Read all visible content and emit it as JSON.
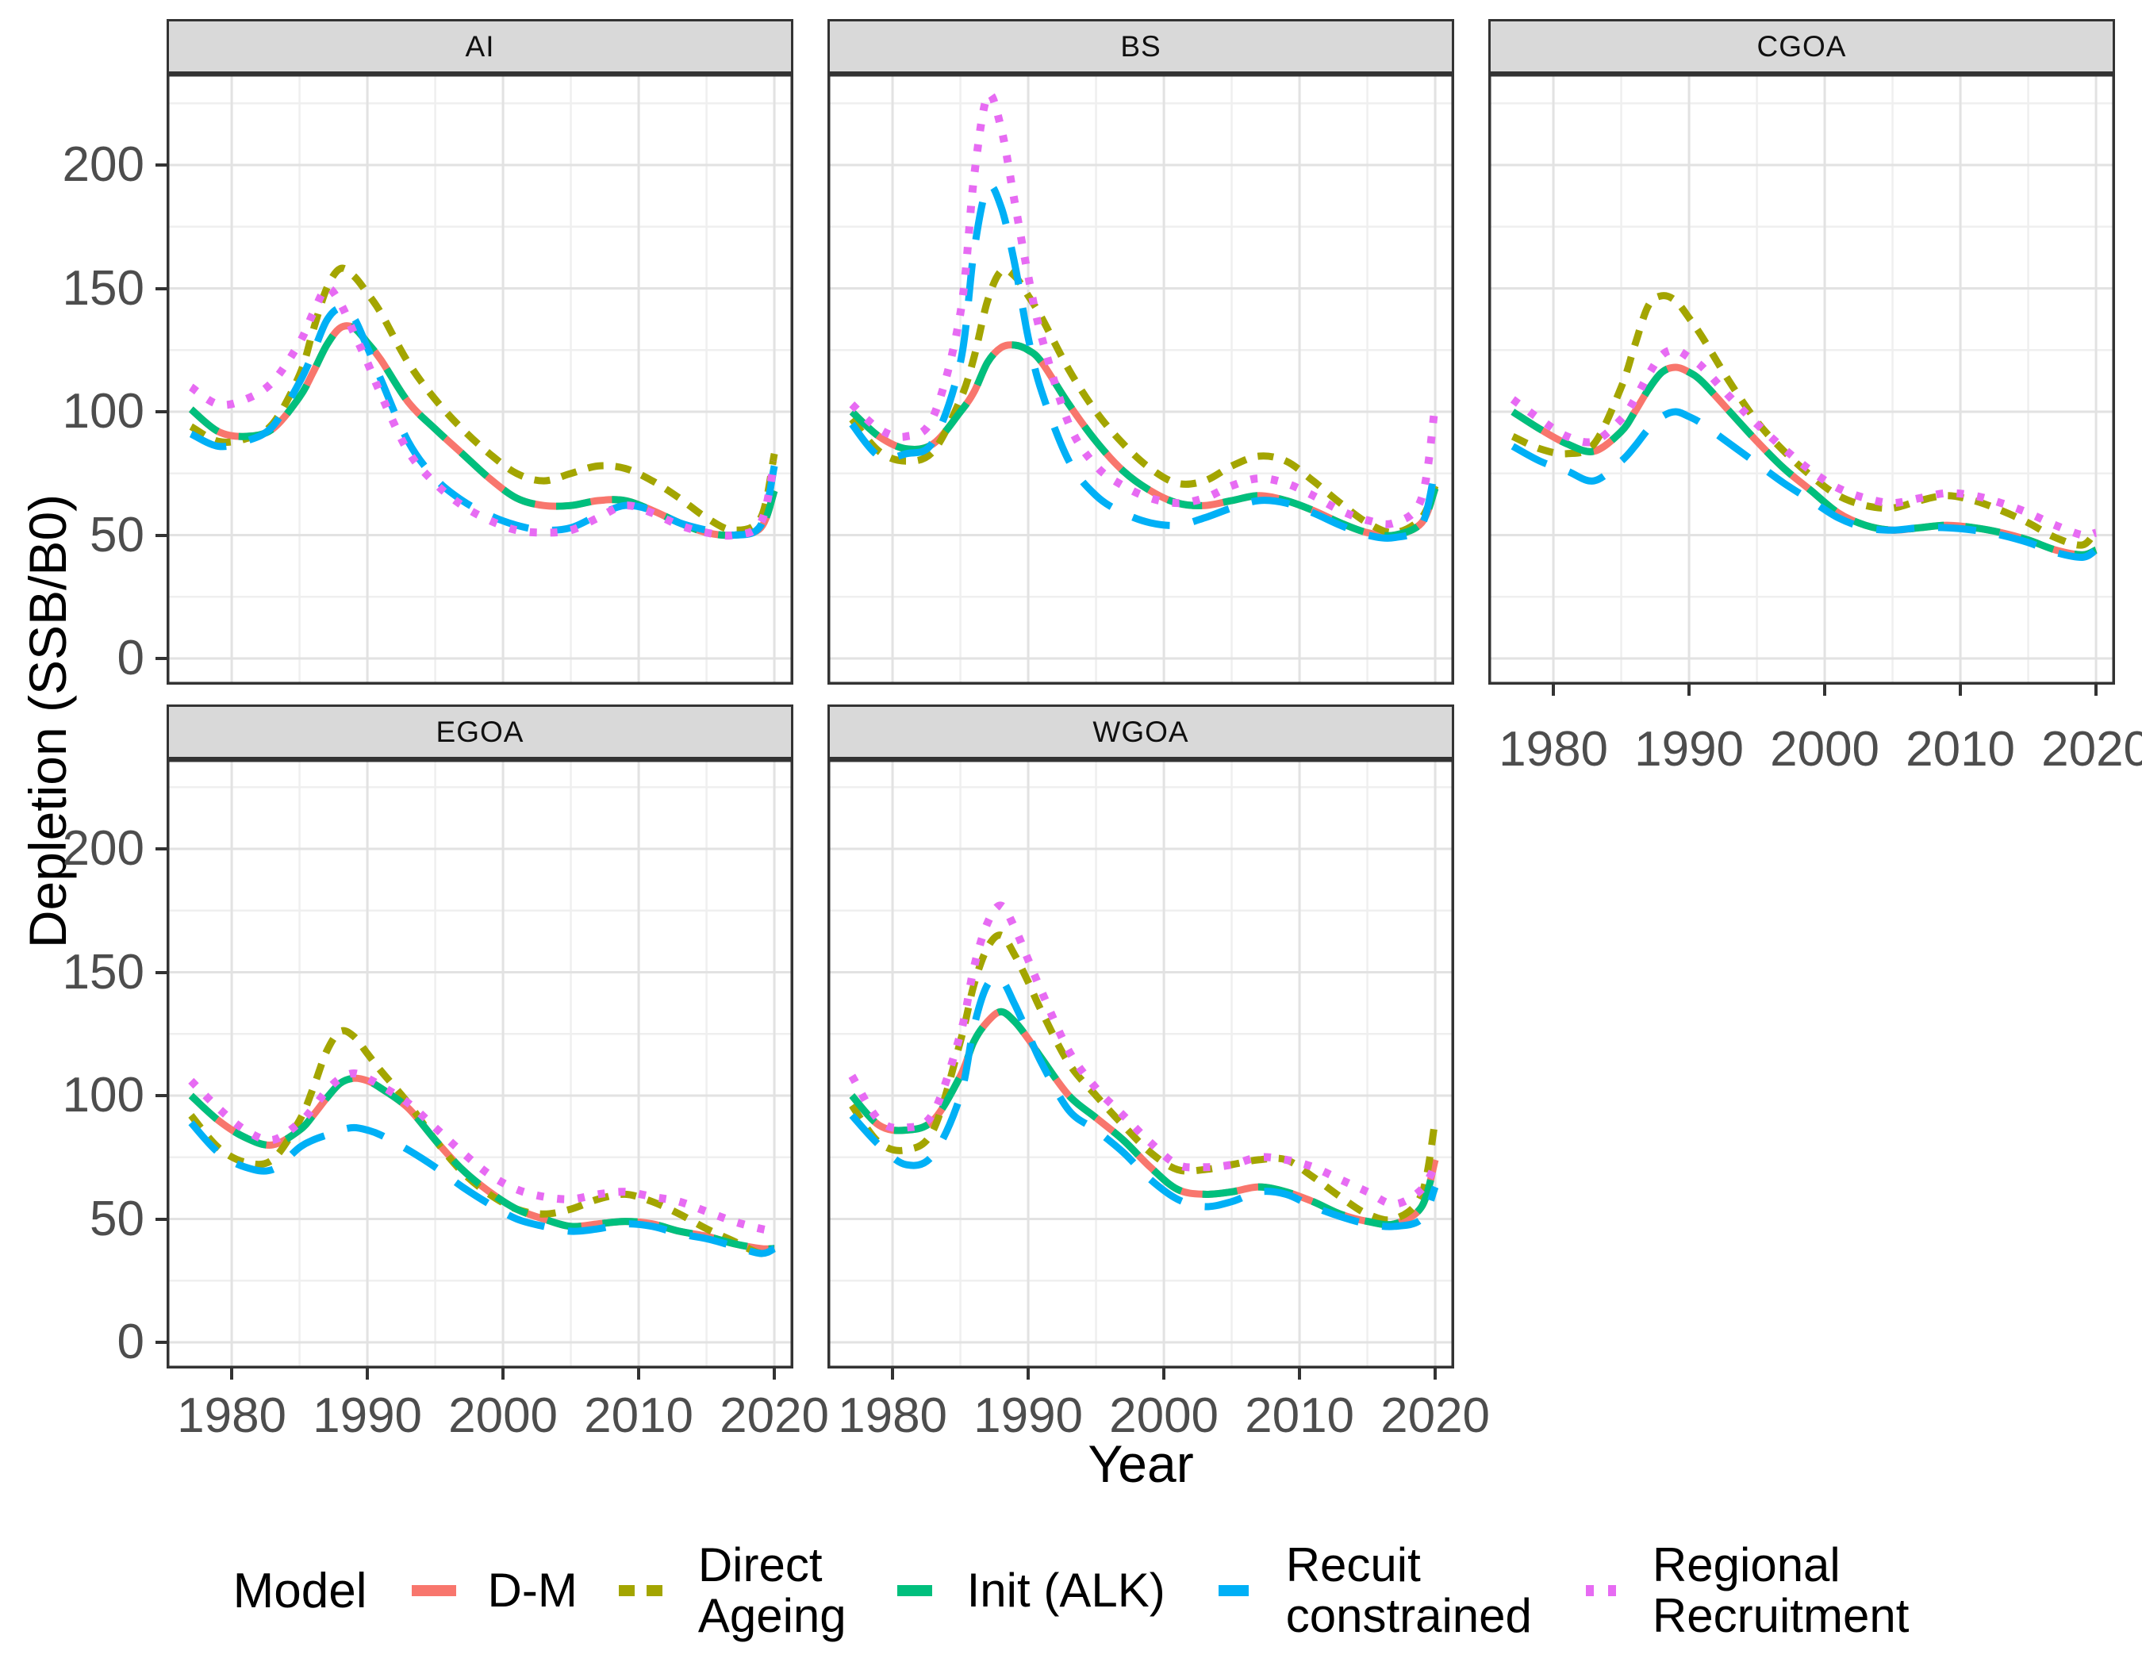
{
  "chart_data": {
    "type": "line",
    "xlabel": "Year",
    "ylabel": "Depletion (SSB/B0)",
    "x_ticks": [
      1980,
      1990,
      2000,
      2010,
      2020
    ],
    "y_ticks": [
      0,
      50,
      100,
      150,
      200
    ],
    "xlim": [
      1975.2,
      2021.4
    ],
    "ylim": [
      -10,
      237
    ],
    "grid": "major+minor",
    "legend_position": "bottom",
    "facet_layout": "3 columns x 2 rows",
    "years": [
      1977,
      1979,
      1981,
      1983,
      1985,
      1986,
      1987,
      1988,
      1989,
      1990,
      1991,
      1993,
      1995,
      1997,
      1999,
      2001,
      2003,
      2005,
      2007,
      2009,
      2011,
      2013,
      2015,
      2017,
      2019,
      2020
    ],
    "panels": [
      {
        "label": "AI",
        "series": [
          {
            "id": "dm",
            "name": "D-M",
            "values": [
              101,
              92,
              90,
              93,
              106,
              116,
              127,
              134,
              134,
              128,
              121,
              104,
              93,
              83,
              73,
              65,
              62,
              62,
              64,
              64,
              60,
              55,
              51,
              50,
              53,
              68
            ]
          },
          {
            "id": "direct_ageing",
            "name": "Direct Ageing",
            "values": [
              94,
              88,
              89,
              95,
              115,
              133,
              150,
              158,
              155,
              148,
              140,
              120,
              105,
              93,
              83,
              75,
              72,
              75,
              78,
              77,
              72,
              65,
              57,
              52,
              57,
              83
            ]
          },
          {
            "id": "init_alk",
            "name": "Init (ALK)",
            "values": [
              101,
              92,
              90,
              93,
              106,
              116,
              127,
              134,
              134,
              128,
              121,
              104,
              93,
              83,
              73,
              65,
              62,
              62,
              64,
              64,
              60,
              55,
              51,
              50,
              53,
              68
            ]
          },
          {
            "id": "recruit_constrained",
            "name": "Recuit constrained",
            "values": [
              91,
              86,
              88,
              94,
              112,
              124,
              137,
              142,
              138,
              126,
              113,
              88,
              73,
              64,
              58,
              54,
              52,
              53,
              58,
              62,
              60,
              55,
              52,
              50,
              54,
              78
            ]
          },
          {
            "id": "regional_recruitment",
            "name": "Regional Recruitment",
            "values": [
              110,
              103,
              105,
              112,
              128,
              140,
              150,
              144,
              132,
              120,
              107,
              84,
              71,
              62,
              56,
              52,
              51,
              52,
              57,
              62,
              59,
              54,
              51,
              50,
              55,
              80
            ]
          }
        ]
      },
      {
        "label": "BS",
        "series": [
          {
            "id": "dm",
            "name": "D-M",
            "values": [
              100,
              90,
              85,
              87,
              100,
              108,
              120,
              126,
              127,
              125,
              120,
              103,
              88,
              76,
              68,
              63,
              62,
              64,
              66,
              64,
              60,
              55,
              51,
              50,
              55,
              69
            ]
          },
          {
            "id": "direct_ageing",
            "name": "Direct Ageing",
            "values": [
              97,
              84,
              80,
              84,
              105,
              122,
              145,
              157,
              155,
              147,
              138,
              117,
              100,
              87,
              77,
              71,
              72,
              78,
              82,
              80,
              72,
              63,
              55,
              51,
              57,
              70
            ]
          },
          {
            "id": "init_alk",
            "name": "Init (ALK)",
            "values": [
              100,
              90,
              85,
              87,
              100,
              108,
              120,
              126,
              127,
              125,
              120,
              103,
              88,
              76,
              68,
              63,
              62,
              64,
              66,
              64,
              60,
              55,
              51,
              50,
              55,
              69
            ]
          },
          {
            "id": "recruit_constrained",
            "name": "Recuit constrained",
            "values": [
              95,
              82,
              83,
              88,
              120,
              165,
              191,
              183,
              160,
              130,
              108,
              80,
              66,
              59,
              55,
              54,
              57,
              61,
              64,
              63,
              59,
              54,
              50,
              49,
              54,
              77
            ]
          },
          {
            "id": "regional_recruitment",
            "name": "Regional Recruitment",
            "values": [
              103,
              93,
              90,
              98,
              140,
              195,
              228,
              215,
              185,
              155,
              130,
              95,
              78,
              70,
              65,
              63,
              65,
              70,
              73,
              71,
              66,
              60,
              56,
              55,
              65,
              103
            ]
          }
        ]
      },
      {
        "label": "CGOA",
        "series": [
          {
            "id": "dm",
            "name": "D-M",
            "values": [
              100,
              93,
              87,
              84,
              92,
              100,
              109,
              116,
              118,
              116,
              112,
              100,
              88,
              77,
              68,
              59,
              54,
              52,
              53,
              54,
              53,
              51,
              48,
              44,
              42,
              44
            ]
          },
          {
            "id": "direct_ageing",
            "name": "Direct Ageing",
            "values": [
              90,
              85,
              83,
              87,
              110,
              127,
              143,
              147,
              145,
              138,
              130,
              112,
              96,
              84,
              74,
              66,
              62,
              61,
              64,
              66,
              64,
              60,
              55,
              49,
              46,
              52
            ]
          },
          {
            "id": "init_alk",
            "name": "Init (ALK)",
            "values": [
              100,
              93,
              87,
              84,
              92,
              100,
              109,
              116,
              118,
              116,
              112,
              100,
              88,
              77,
              68,
              59,
              54,
              52,
              53,
              54,
              53,
              51,
              48,
              44,
              42,
              44
            ]
          },
          {
            "id": "recruit_constrained",
            "name": "Recuit constrained",
            "values": [
              86,
              80,
              76,
              72,
              80,
              86,
              93,
              98,
              100,
              98,
              95,
              87,
              79,
              71,
              64,
              57,
              53,
              52,
              53,
              53,
              52,
              50,
              47,
              43,
              41,
              44
            ]
          },
          {
            "id": "regional_recruitment",
            "name": "Regional Recruitment",
            "values": [
              105,
              97,
              90,
              88,
              97,
              105,
              115,
              123,
              125,
              122,
              118,
              106,
              95,
              85,
              76,
              69,
              65,
              63,
              65,
              67,
              66,
              63,
              59,
              54,
              50,
              51
            ]
          }
        ]
      },
      {
        "label": "EGOA",
        "series": [
          {
            "id": "dm",
            "name": "D-M",
            "values": [
              100,
              90,
              83,
              80,
              86,
              92,
              99,
              105,
              107,
              106,
              103,
              95,
              82,
              70,
              61,
              54,
              50,
              47,
              48,
              49,
              48,
              45,
              43,
              40,
              38,
              38
            ]
          },
          {
            "id": "direct_ageing",
            "name": "Direct Ageing",
            "values": [
              92,
              79,
              73,
              74,
              90,
              103,
              118,
              126,
              124,
              117,
              110,
              97,
              82,
              69,
              60,
              54,
              52,
              54,
              58,
              60,
              57,
              52,
              46,
              41,
              36,
              38
            ]
          },
          {
            "id": "init_alk",
            "name": "Init (ALK)",
            "values": [
              100,
              90,
              83,
              80,
              86,
              92,
              99,
              105,
              107,
              106,
              103,
              95,
              82,
              70,
              61,
              54,
              50,
              47,
              48,
              49,
              48,
              45,
              43,
              40,
              38,
              38
            ]
          },
          {
            "id": "recruit_constrained",
            "name": "Recuit constrained",
            "values": [
              89,
              77,
              71,
              70,
              79,
              82,
              84,
              86,
              87,
              86,
              84,
              78,
              71,
              63,
              56,
              50,
              47,
              45,
              46,
              48,
              47,
              44,
              42,
              39,
              36,
              38
            ]
          },
          {
            "id": "regional_recruitment",
            "name": "Regional Recruitment",
            "values": [
              106,
              95,
              86,
              82,
              89,
              95,
              102,
              107,
              109,
              107,
              104,
              97,
              87,
              77,
              68,
              62,
              59,
              58,
              60,
              61,
              59,
              57,
              53,
              49,
              46,
              45
            ]
          }
        ]
      },
      {
        "label": "WGOA",
        "series": [
          {
            "id": "dm",
            "name": "D-M",
            "values": [
              100,
              88,
              86,
              90,
              108,
              122,
              130,
              134,
              130,
              123,
              115,
              100,
              91,
              82,
              71,
              62,
              60,
              61,
              63,
              61,
              57,
              52,
              49,
              48,
              55,
              74
            ]
          },
          {
            "id": "direct_ageing",
            "name": "Direct Ageing",
            "values": [
              96,
              81,
              78,
              86,
              122,
              145,
              160,
              165,
              157,
              146,
              134,
              113,
              100,
              88,
              77,
              70,
              70,
              72,
              74,
              74,
              67,
              59,
              52,
              50,
              60,
              90
            ]
          },
          {
            "id": "init_alk",
            "name": "Init (ALK)",
            "values": [
              100,
              88,
              86,
              90,
              108,
              122,
              130,
              134,
              130,
              123,
              115,
              100,
              91,
              82,
              71,
              62,
              60,
              61,
              63,
              61,
              57,
              52,
              49,
              48,
              55,
              74
            ]
          },
          {
            "id": "recruit_constrained",
            "name": "Recuit constrained",
            "values": [
              92,
              80,
              72,
              76,
              100,
              128,
              145,
              147,
              137,
              125,
              113,
              94,
              86,
              77,
              66,
              58,
              55,
              57,
              61,
              60,
              55,
              51,
              48,
              47,
              50,
              63
            ]
          },
          {
            "id": "regional_recruitment",
            "name": "Regional Recruitment",
            "values": [
              108,
              90,
              87,
              93,
              125,
              152,
              170,
              177,
              168,
              155,
              142,
              118,
              103,
              92,
              81,
              72,
              71,
              72,
              75,
              74,
              71,
              66,
              61,
              56,
              62,
              72
            ]
          }
        ]
      }
    ]
  },
  "legend": {
    "title": "Model",
    "entries": [
      {
        "id": "dm",
        "label": "D-M",
        "color": "#F8766D",
        "linetype": "solid"
      },
      {
        "id": "direct_ageing",
        "label": "Direct\nAgeing",
        "color": "#A3A500",
        "linetype": "dashed"
      },
      {
        "id": "init_alk",
        "label": "Init (ALK)",
        "color": "#00BF7D",
        "linetype": "longdash"
      },
      {
        "id": "recruit_constrained",
        "label": "Recuit\nconstrained",
        "color": "#00B0F6",
        "linetype": "longdash"
      },
      {
        "id": "regional_recruitment",
        "label": "Regional\nRecruitment",
        "color": "#E76BF3",
        "linetype": "dotted"
      }
    ]
  },
  "style_colors": {
    "strip_background": "#D9D9D9",
    "panel_border": "#333333",
    "grid_major": "#E2E2E2",
    "grid_minor": "#EFEFEF",
    "axis_text": "#4d4d4d"
  }
}
